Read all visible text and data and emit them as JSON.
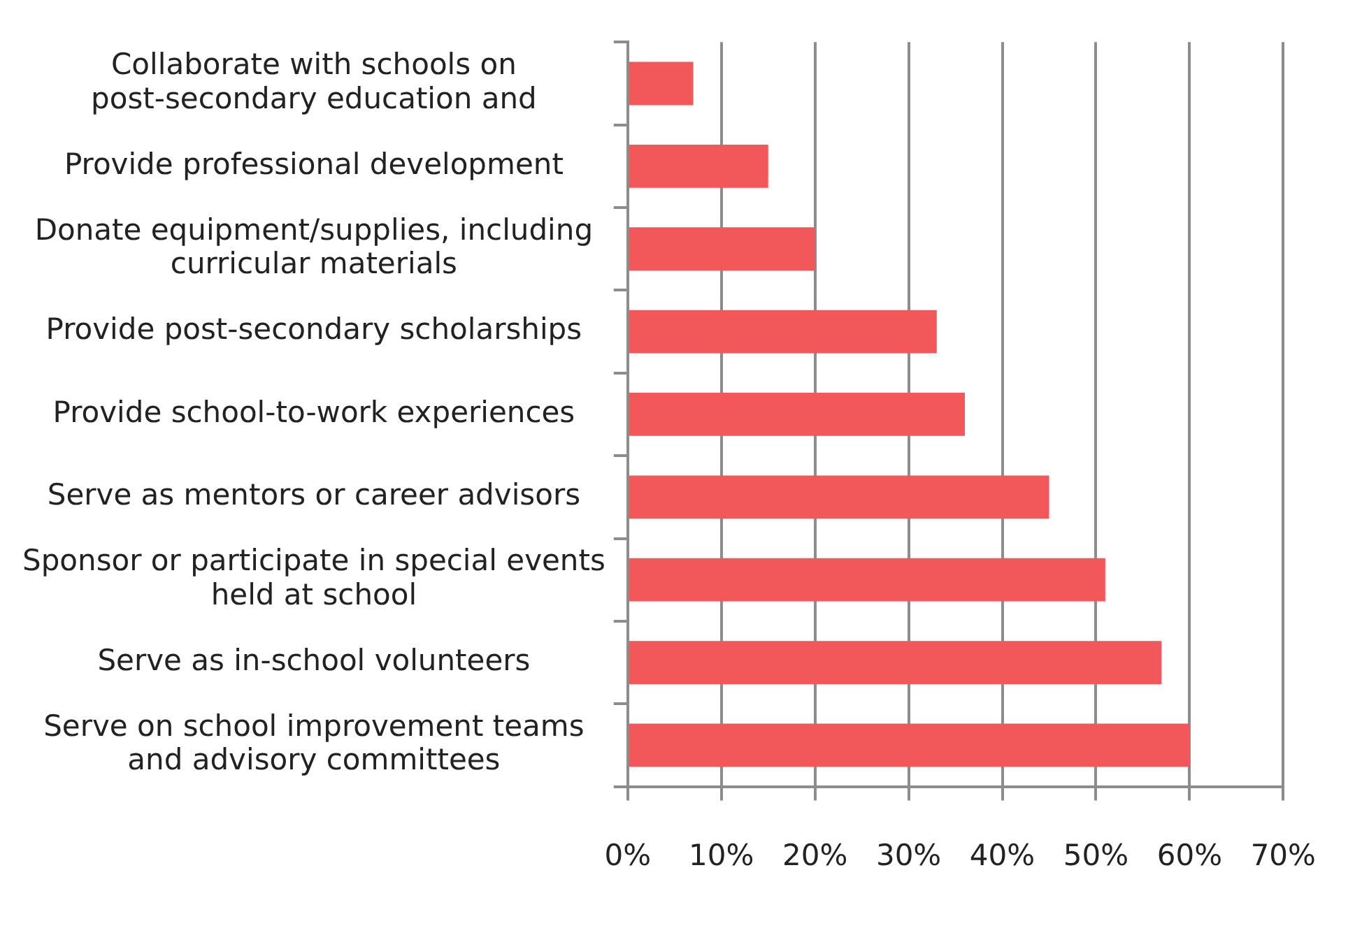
{
  "chart_data": {
    "type": "bar",
    "orientation": "horizontal",
    "categories": [
      "Collaborate with schools on post-secondary education and",
      "Provide professional development",
      "Donate equipment/supplies, including curricular materials",
      "Provide post-secondary scholarships",
      "Provide school-to-work experiences",
      "Serve as mentors or career advisors",
      "Sponsor or participate in special events held at school",
      "Serve as in-school volunteers",
      "Serve on school improvement teams and advisory committees"
    ],
    "values": [
      7,
      15,
      20,
      33,
      36,
      45,
      51,
      57,
      60
    ],
    "color": "#f2585a",
    "xlim": [
      0,
      70
    ],
    "xticks": [
      {
        "value": 0,
        "label": "0%"
      },
      {
        "value": 10,
        "label": "10%"
      },
      {
        "value": 20,
        "label": "20%"
      },
      {
        "value": 30,
        "label": "30%"
      },
      {
        "value": 40,
        "label": "40%"
      },
      {
        "value": 50,
        "label": "50%"
      },
      {
        "value": 60,
        "label": "60%"
      },
      {
        "value": 70,
        "label": "70%"
      }
    ],
    "grid": "x",
    "legend": false
  }
}
